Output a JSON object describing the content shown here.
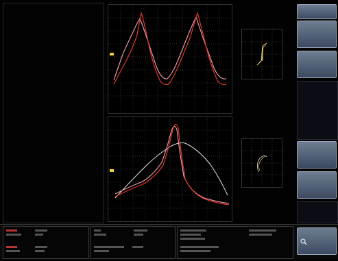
{
  "measurements": {
    "header": [
      "",
      ""
    ],
    "items": [
      "",
      "",
      "",
      "",
      "",
      "",
      "",
      "",
      "",
      "",
      "",
      "",
      "",
      "",
      "",
      "",
      "",
      "",
      "",
      "",
      "",
      "",
      "",
      "",
      "",
      "",
      "",
      "",
      "",
      "",
      "",
      "",
      "",
      "",
      "",
      "",
      ""
    ]
  },
  "softkeys": [
    {
      "label": "",
      "value": ""
    },
    {
      "label": "",
      "value": ""
    },
    {
      "label": "",
      "value": ""
    },
    {
      "label": "",
      "value": ""
    },
    {
      "label": "",
      "value": ""
    },
    {
      "label": "",
      "value": ""
    }
  ],
  "colors": {
    "trace_red": "#e23a2a",
    "trace_pink": "#f4a3b6",
    "trace_white": "#e6e6e6",
    "marker_yellow": "#f0d030",
    "grid": "#5a5a5a",
    "softkey_bg": "#56647a"
  },
  "icons": {
    "zoom": "magnifier-icon"
  }
}
